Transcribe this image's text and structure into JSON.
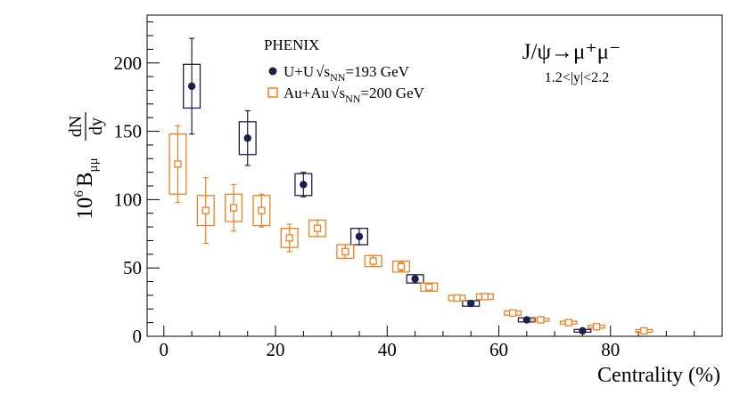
{
  "chart_data": {
    "type": "scatter",
    "title": "",
    "xlabel": "Centrality (%)",
    "ylabel_parts": {
      "prefix": "10",
      "exp": "6",
      "b": "B",
      "b_sub": "μμ",
      "num": "dN",
      "den": "dy"
    },
    "xlim": [
      -3,
      100
    ],
    "ylim": [
      0,
      235
    ],
    "xticks": [
      0,
      20,
      40,
      60,
      80
    ],
    "yticks": [
      0,
      50,
      100,
      150,
      200
    ],
    "grid": false,
    "legend": {
      "placement": "top-center",
      "header": "PHENIX",
      "entries": [
        {
          "label_pre": "U+U",
          "label_sym": "s",
          "label_sub": "NN",
          "label_post": "=193 GeV"
        },
        {
          "label_pre": "Au+Au",
          "label_sym": "s",
          "label_sub": "NN",
          "label_post": "=200 GeV"
        }
      ]
    },
    "annotation": {
      "line1": "J/ψ→μ⁺μ⁻",
      "line2": "1.2<|y|<2.2"
    },
    "series": [
      {
        "name": "U+U √sNN=193 GeV",
        "color": "#1f1f4d",
        "marker": "filled-circle",
        "points": [
          {
            "x": 5,
            "y": 183,
            "stat": 35,
            "sys": 16,
            "box_w": 1.5
          },
          {
            "x": 15,
            "y": 145,
            "stat": 20,
            "sys": 12,
            "box_w": 1.5
          },
          {
            "x": 25,
            "y": 111,
            "stat": 9,
            "sys": 8,
            "box_w": 1.5
          },
          {
            "x": 35,
            "y": 73,
            "stat": 6,
            "sys": 6,
            "box_w": 1.5
          },
          {
            "x": 45,
            "y": 42,
            "stat": 3,
            "sys": 3,
            "box_w": 1.5
          },
          {
            "x": 55,
            "y": 24,
            "stat": 2,
            "sys": 2,
            "box_w": 1.5
          },
          {
            "x": 65,
            "y": 12,
            "stat": 1,
            "sys": 1.5,
            "box_w": 1.5
          },
          {
            "x": 75,
            "y": 4,
            "stat": 1,
            "sys": 1,
            "box_w": 1.5
          }
        ]
      },
      {
        "name": "Au+Au √sNN=200 GeV",
        "color": "#f07f1f",
        "marker": "open-square",
        "points": [
          {
            "x": 2.5,
            "y": 126,
            "stat": 28,
            "sys": 22,
            "box_w": 1.5
          },
          {
            "x": 7.5,
            "y": 92,
            "stat": 24,
            "sys": 11,
            "box_w": 1.5
          },
          {
            "x": 12.5,
            "y": 94,
            "stat": 17,
            "sys": 10,
            "box_w": 1.5
          },
          {
            "x": 17.5,
            "y": 92,
            "stat": 12,
            "sys": 11,
            "box_w": 1.5
          },
          {
            "x": 22.5,
            "y": 72,
            "stat": 10,
            "sys": 7,
            "box_w": 1.5
          },
          {
            "x": 27.5,
            "y": 79,
            "stat": 6,
            "sys": 6,
            "box_w": 1.5
          },
          {
            "x": 32.5,
            "y": 62,
            "stat": 5,
            "sys": 5,
            "box_w": 1.5
          },
          {
            "x": 37.5,
            "y": 55,
            "stat": 4,
            "sys": 4,
            "box_w": 1.5
          },
          {
            "x": 42.5,
            "y": 51,
            "stat": 3,
            "sys": 4,
            "box_w": 1.5
          },
          {
            "x": 47.5,
            "y": 36,
            "stat": 2,
            "sys": 3,
            "box_w": 1.5
          },
          {
            "x": 52.5,
            "y": 28,
            "stat": 1.5,
            "sys": 2,
            "box_w": 1.5
          },
          {
            "x": 57.5,
            "y": 29,
            "stat": 1.5,
            "sys": 2,
            "box_w": 1.5
          },
          {
            "x": 62.5,
            "y": 17,
            "stat": 1,
            "sys": 1.5,
            "box_w": 1.5
          },
          {
            "x": 67.5,
            "y": 12,
            "stat": 1,
            "sys": 1,
            "box_w": 1.5
          },
          {
            "x": 72.5,
            "y": 10,
            "stat": 1,
            "sys": 1,
            "box_w": 1.5
          },
          {
            "x": 77.5,
            "y": 7,
            "stat": 1,
            "sys": 1,
            "box_w": 1.5
          },
          {
            "x": 86,
            "y": 4,
            "stat": 0.5,
            "sys": 1,
            "box_w": 1.5
          }
        ]
      }
    ]
  }
}
